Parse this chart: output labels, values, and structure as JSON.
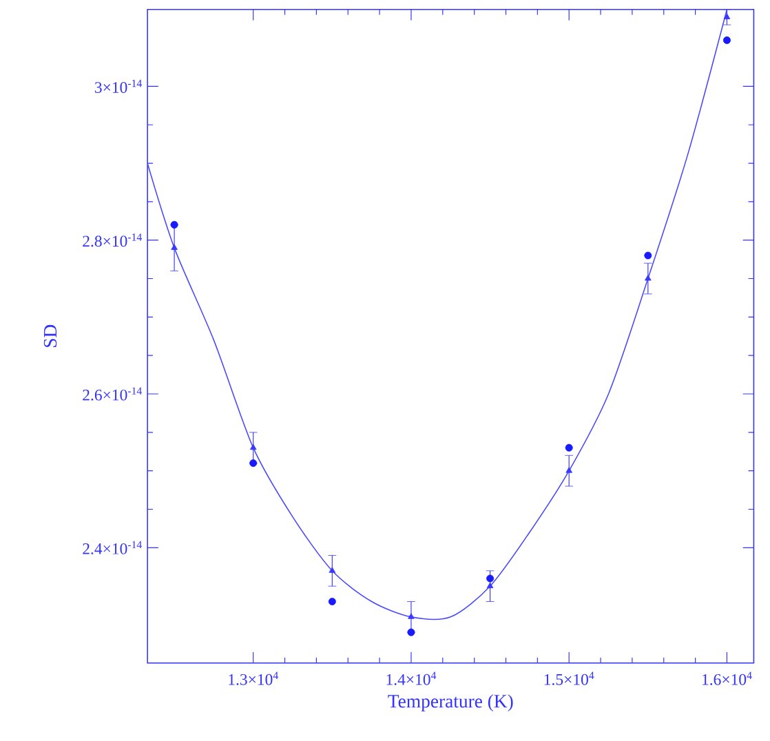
{
  "chart_data": {
    "type": "scatter",
    "xlabel": "Temperature (K)",
    "ylabel": "SD",
    "xlim": [
      12330,
      16170
    ],
    "ylim": [
      2.25e-14,
      3.1e-14
    ],
    "xticks": [
      {
        "value": 13000,
        "label": "1.3×10$^{4}$"
      },
      {
        "value": 14000,
        "label": "1.4×10$^{4}$"
      },
      {
        "value": 15000,
        "label": "1.5×10$^{4}$"
      },
      {
        "value": 16000,
        "label": "1.6×10$^{4}$"
      }
    ],
    "yticks": [
      {
        "value": 2.4e-14,
        "label": "2.4×10$^{-14}$"
      },
      {
        "value": 2.6e-14,
        "label": "2.6×10$^{-14}$"
      },
      {
        "value": 2.8e-14,
        "label": "2.8×10$^{-14}$"
      },
      {
        "value": 3e-14,
        "label": "3×10$^{-14}$"
      }
    ],
    "grid": false,
    "series": [
      {
        "marker": "circle",
        "color": "#1a1aff",
        "x": [
          12500,
          13000,
          13500,
          14000,
          14500,
          15000,
          15500,
          16000
        ],
        "values": [
          2.82e-14,
          2.51e-14,
          2.33e-14,
          2.29e-14,
          2.36e-14,
          2.53e-14,
          2.78e-14,
          3.06e-14
        ]
      },
      {
        "marker": "triangle",
        "color": "#3838ff",
        "x": [
          12500,
          13000,
          13500,
          14000,
          14500,
          15000,
          15500,
          16000
        ],
        "values": [
          2.79e-14,
          2.53e-14,
          2.37e-14,
          2.31e-14,
          2.35e-14,
          2.5e-14,
          2.75e-14,
          3.09e-14
        ],
        "errors": [
          3e-16,
          2e-16,
          2e-16,
          2e-16,
          2e-16,
          2e-16,
          2e-16,
          1e-16
        ]
      },
      {
        "type": "line",
        "line_style": "solid",
        "marker": "none",
        "color": "#4848ff",
        "x": [
          12330,
          12500,
          12750,
          13000,
          13250,
          13500,
          13750,
          14000,
          14250,
          14500,
          14750,
          15000,
          15250,
          15500,
          15750,
          16000
        ],
        "values": [
          2.9e-14,
          2.79e-14,
          2.67e-14,
          2.53e-14,
          2.44e-14,
          2.37e-14,
          2.33e-14,
          2.31e-14,
          2.31e-14,
          2.35e-14,
          2.42e-14,
          2.5e-14,
          2.6e-14,
          2.75e-14,
          2.91e-14,
          3.1e-14
        ]
      }
    ]
  }
}
